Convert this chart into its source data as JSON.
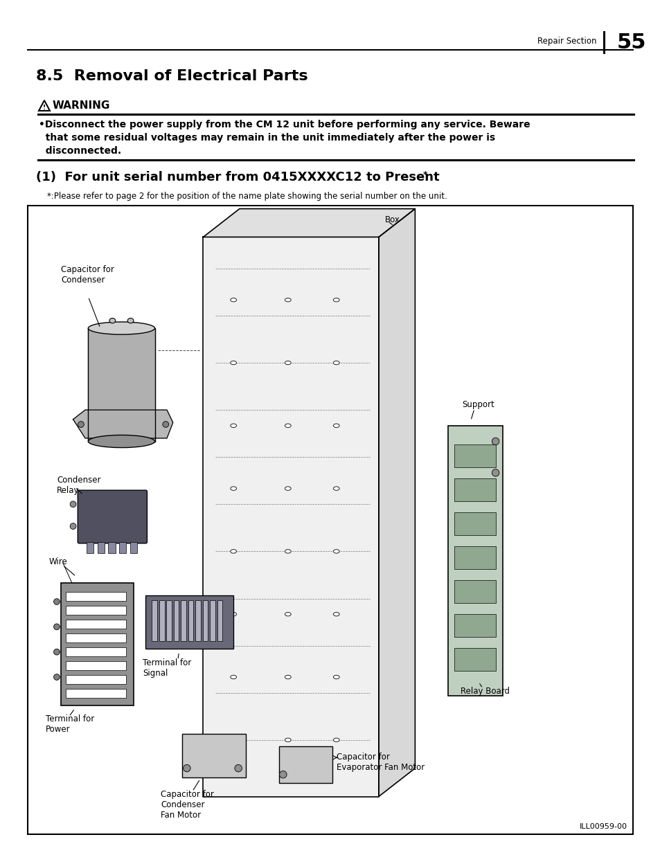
{
  "page_number": "55",
  "header_section": "Repair Section",
  "title": "8.5  Removal of Electrical Parts",
  "warning_title": "WARNING",
  "warning_text_line1": "•Disconnect the power supply from the CM 12 unit before performing any service. Beware",
  "warning_text_line2": "  that some residual voltages may remain in the unit immediately after the power is",
  "warning_text_line3": "  disconnected.",
  "section_title": "(1)  For unit serial number from 0415XXXXC12 to Present",
  "section_title_super": "*",
  "footnote": "*:Please refer to page 2 for the position of the name plate showing the serial number on the unit.",
  "diagram_label": "ILL00959-00",
  "bg_color": "#ffffff"
}
